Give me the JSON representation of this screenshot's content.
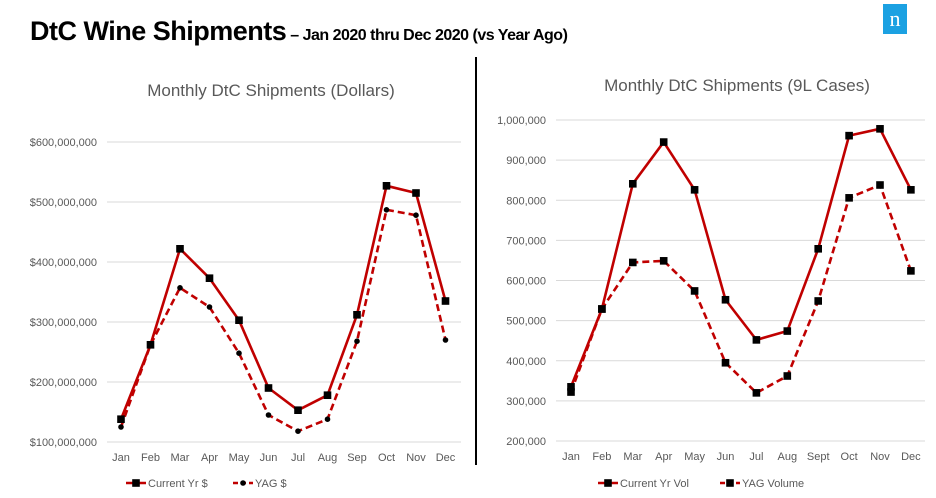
{
  "header": {
    "title": "DtC Wine Shipments",
    "subtitle": "– Jan 2020 thru Dec 2020 (vs Year Ago)",
    "logo_text": "n"
  },
  "colors": {
    "line": "#c00000",
    "marker": "#000000",
    "grid": "#d9d9d9",
    "logo": "#1ba1e2"
  },
  "chart_data": [
    {
      "type": "line",
      "title": "Monthly DtC Shipments (Dollars)",
      "categories": [
        "Jan",
        "Feb",
        "Mar",
        "Apr",
        "May",
        "Jun",
        "Jul",
        "Aug",
        "Sep",
        "Oct",
        "Nov",
        "Dec"
      ],
      "ylim": [
        100000000,
        600000000
      ],
      "yticks": [
        "$100,000,000",
        "$200,000,000",
        "$300,000,000",
        "$400,000,000",
        "$500,000,000",
        "$600,000,000"
      ],
      "grid": true,
      "legend": "bottom",
      "series": [
        {
          "name": "Current Yr $",
          "style": "solid",
          "marker": "square",
          "values": [
            138000000,
            262000000,
            422000000,
            373000000,
            303000000,
            190000000,
            153000000,
            178000000,
            312000000,
            527000000,
            515000000,
            335000000
          ]
        },
        {
          "name": "YAG $",
          "style": "dashed",
          "marker": "circle",
          "values": [
            125000000,
            262000000,
            357000000,
            325000000,
            248000000,
            145000000,
            118000000,
            138000000,
            268000000,
            487000000,
            478000000,
            270000000
          ]
        }
      ]
    },
    {
      "type": "line",
      "title": "Monthly DtC Shipments (9L Cases)",
      "categories": [
        "Jan",
        "Feb",
        "Mar",
        "Apr",
        "May",
        "Jun",
        "Jul",
        "Aug",
        "Sept",
        "Oct",
        "Nov",
        "Dec"
      ],
      "ylim": [
        200000,
        1000000
      ],
      "yticks": [
        "200,000",
        "300,000",
        "400,000",
        "500,000",
        "600,000",
        "700,000",
        "800,000",
        "900,000",
        "1,000,000"
      ],
      "grid": true,
      "legend": "bottom",
      "series": [
        {
          "name": "Current Yr Vol",
          "style": "solid",
          "marker": "square",
          "values": [
            335000,
            529000,
            841000,
            945000,
            826000,
            552000,
            452000,
            474000,
            679000,
            961000,
            978000,
            826000
          ]
        },
        {
          "name": "YAG Volume",
          "style": "dashed",
          "marker": "square",
          "values": [
            322000,
            529000,
            645000,
            649000,
            574000,
            395000,
            320000,
            362000,
            549000,
            806000,
            838000,
            624000
          ]
        }
      ]
    }
  ]
}
